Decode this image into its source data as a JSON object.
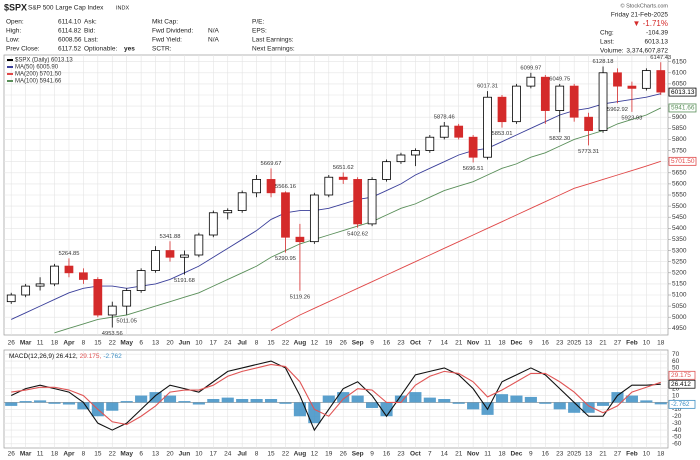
{
  "header": {
    "symbol": "$SPX",
    "name": "S&P 500 Large Cap Index",
    "exchange": "INDX",
    "columns": [
      [
        {
          "label": "Open:",
          "value": "6114.10"
        },
        {
          "label": "High:",
          "value": "6114.82"
        },
        {
          "label": "Low:",
          "value": "6008.56"
        },
        {
          "label": "Prev Close:",
          "value": "6117.52"
        }
      ],
      [
        {
          "label": "Ask:"
        },
        {
          "label": "Bid:"
        },
        {
          "label": "Last:"
        },
        {
          "label": "Optionable:",
          "value": "yes"
        }
      ],
      [
        {
          "label": "Mkt Cap:"
        },
        {
          "label": "Fwd Dividend:",
          "value": "N/A"
        },
        {
          "label": "Fwd Yield:",
          "value": "N/A"
        },
        {
          "label": "SCTR:"
        }
      ],
      [
        {
          "label": "P/E:"
        },
        {
          "label": "EPS:"
        },
        {
          "label": "Last Earnings:"
        },
        {
          "label": "Next Earnings:"
        }
      ]
    ],
    "date": "Friday 21-Feb-2025",
    "change_pct": "▼ -1.71%",
    "stats": [
      {
        "label": "Chg:",
        "value": "-104.39"
      },
      {
        "label": "Last:",
        "value": "6013.13"
      },
      {
        "label": "Volume:",
        "value": "3,374,607,872"
      }
    ],
    "copyright": "© StockCharts.com"
  },
  "chart_data": {
    "type": "candlestick",
    "categories": [
      "26",
      "Mar",
      "11",
      "18",
      "Apr",
      "8",
      "15",
      "22",
      "May",
      "6",
      "13",
      "20",
      "Jun",
      "10",
      "17",
      "24",
      "Jul",
      "8",
      "15",
      "22",
      "Aug",
      "12",
      "19",
      "26",
      "Sep",
      "9",
      "16",
      "23",
      "Oct",
      "7",
      "14",
      "21",
      "Nov",
      "11",
      "18",
      "Dec",
      "9",
      "16",
      "23",
      "2025",
      "13",
      "21",
      "27",
      "Feb",
      "10",
      "18"
    ],
    "candles": {
      "name": "$SPX (Daily) 6013.13",
      "up_color": "#000000",
      "down_color": "#d42a2a",
      "open": [
        5070,
        5100,
        5140,
        5150,
        5230,
        5200,
        5170,
        5010,
        5050,
        5120,
        5210,
        5300,
        5270,
        5280,
        5370,
        5470,
        5480,
        5560,
        5620,
        5560,
        5360,
        5340,
        5550,
        5630,
        5620,
        5420,
        5620,
        5700,
        5730,
        5750,
        5810,
        5860,
        5810,
        5720,
        5990,
        5880,
        6040,
        6080,
        5930,
        6040,
        5900,
        5840,
        6100,
        6040,
        6030,
        6110
      ],
      "high": [
        5110,
        5150,
        5180,
        5240,
        5264.85,
        5220,
        5180,
        5070,
        5130,
        5220,
        5320,
        5341.88,
        5300,
        5380,
        5480,
        5490,
        5570,
        5640,
        5669.67,
        5566.16,
        5420,
        5560,
        5640,
        5651.62,
        5630,
        5630,
        5710,
        5740,
        5760,
        5820,
        5878.46,
        5870,
        5820,
        6017.31,
        6000,
        6050,
        6099.97,
        6090,
        6049.75,
        6050,
        5920,
        6128.18,
        6120,
        6060,
        6120,
        6147.43
      ],
      "low": [
        5060,
        5090,
        5120,
        5140,
        5180,
        5150,
        5000,
        4953.56,
        5011.05,
        5110,
        5200,
        5250,
        5191.68,
        5270,
        5360,
        5440,
        5470,
        5540,
        5540,
        5290.95,
        5119.26,
        5330,
        5540,
        5600,
        5402.62,
        5410,
        5610,
        5690,
        5680,
        5740,
        5800,
        5800,
        5696.51,
        5710,
        5853.01,
        5870,
        6030,
        5870,
        5832.3,
        5880,
        5773.31,
        5830,
        5962.92,
        5923.93,
        6020,
        6000
      ],
      "close": [
        5100,
        5140,
        5150,
        5230,
        5200,
        5170,
        5010,
        5050,
        5120,
        5210,
        5300,
        5270,
        5280,
        5370,
        5470,
        5480,
        5560,
        5620,
        5560,
        5360,
        5340,
        5550,
        5630,
        5620,
        5420,
        5620,
        5700,
        5730,
        5750,
        5810,
        5860,
        5810,
        5720,
        5990,
        5880,
        6040,
        6080,
        5930,
        6040,
        5900,
        5840,
        6100,
        6040,
        6030,
        6110,
        6013.13
      ]
    },
    "high_labels": [
      null,
      null,
      null,
      null,
      "5264.85",
      null,
      null,
      null,
      null,
      null,
      null,
      "5341.88",
      null,
      null,
      null,
      null,
      null,
      null,
      "5669.67",
      "5566.16",
      null,
      null,
      null,
      "5651.62",
      null,
      null,
      null,
      null,
      null,
      null,
      "5878.46",
      null,
      null,
      "6017.31",
      null,
      null,
      "6099.97",
      null,
      "6049.75",
      null,
      null,
      "6128.18",
      null,
      null,
      null,
      "6147.43"
    ],
    "low_labels": [
      null,
      null,
      null,
      null,
      null,
      null,
      null,
      "4953.56",
      "5011.05",
      null,
      null,
      null,
      "5191.68",
      null,
      null,
      null,
      null,
      null,
      null,
      "5290.95",
      "5119.26",
      null,
      null,
      null,
      "5402.62",
      null,
      null,
      null,
      null,
      null,
      null,
      null,
      "5696.51",
      null,
      "5853.01",
      null,
      null,
      null,
      "5832.30",
      null,
      "5773.31",
      null,
      "5962.92",
      "5923.93",
      null,
      null
    ],
    "series": [
      {
        "name": "MA(50) 6005.90",
        "color": "#3a3f9a",
        "values": [
          4990,
          5020,
          5050,
          5080,
          5110,
          5130,
          5140,
          5140,
          5130,
          5140,
          5150,
          5170,
          5200,
          5230,
          5270,
          5310,
          5350,
          5390,
          5440,
          5470,
          5480,
          5480,
          5490,
          5510,
          5530,
          5540,
          5570,
          5600,
          5640,
          5670,
          5700,
          5730,
          5750,
          5760,
          5790,
          5820,
          5850,
          5880,
          5910,
          5930,
          5940,
          5960,
          5970,
          5980,
          5990,
          6005.9
        ]
      },
      {
        "name": "MA(200) 5701.50",
        "color": "#e04848",
        "values": [
          null,
          null,
          null,
          null,
          null,
          null,
          null,
          null,
          null,
          null,
          null,
          null,
          null,
          null,
          null,
          null,
          null,
          null,
          4940,
          4975,
          5010,
          5040,
          5070,
          5100,
          5130,
          5160,
          5190,
          5220,
          5250,
          5280,
          5310,
          5340,
          5370,
          5400,
          5430,
          5460,
          5490,
          5520,
          5550,
          5580,
          5600,
          5620,
          5640,
          5660,
          5680,
          5701.5
        ],
        "value_labels": [
          null,
          null,
          null,
          null,
          null,
          null,
          null,
          null,
          null,
          null,
          null,
          null,
          null,
          null,
          null,
          null,
          null,
          null,
          null,
          null,
          null,
          null,
          null,
          null,
          null,
          null,
          null,
          null,
          null,
          null,
          null,
          null,
          null,
          null,
          null,
          null,
          null,
          null,
          null,
          null,
          null,
          null,
          null,
          null,
          null,
          "5701.50"
        ]
      },
      {
        "name": "MA(100) 5941.66",
        "color": "#5a8f5a",
        "values": [
          null,
          null,
          null,
          4930,
          4950,
          4970,
          4990,
          5000,
          5010,
          5030,
          5050,
          5070,
          5090,
          5110,
          5140,
          5170,
          5200,
          5230,
          5270,
          5300,
          5330,
          5350,
          5370,
          5390,
          5410,
          5430,
          5460,
          5490,
          5510,
          5540,
          5570,
          5590,
          5610,
          5640,
          5670,
          5690,
          5720,
          5740,
          5770,
          5800,
          5820,
          5840,
          5870,
          5890,
          5910,
          5941.66
        ]
      }
    ],
    "ylim": [
      4920,
      6180
    ],
    "yticks": [
      4950,
      5000,
      5050,
      5100,
      5150,
      5200,
      5250,
      5300,
      5350,
      5400,
      5450,
      5500,
      5550,
      5600,
      5650,
      5700,
      5750,
      5800,
      5850,
      5900,
      5950,
      6000,
      6050,
      6100,
      6150
    ],
    "grid": true,
    "macd": {
      "series": [
        {
          "name": "MACD(12,26,9) 26.412,",
          "color": "#111111",
          "values": [
            10,
            20,
            25,
            20,
            15,
            0,
            -30,
            -40,
            -30,
            -10,
            10,
            25,
            20,
            15,
            30,
            45,
            50,
            55,
            60,
            50,
            10,
            -40,
            -10,
            20,
            30,
            10,
            -20,
            10,
            40,
            45,
            50,
            40,
            20,
            -10,
            30,
            40,
            50,
            40,
            20,
            0,
            -20,
            -20,
            10,
            25,
            25,
            26.412
          ]
        },
        {
          "name": "29.175,",
          "color": "#e05555",
          "values": [
            15,
            18,
            22,
            22,
            18,
            10,
            -10,
            -28,
            -32,
            -20,
            -5,
            15,
            18,
            18,
            25,
            38,
            45,
            50,
            55,
            52,
            30,
            -10,
            -20,
            5,
            20,
            18,
            0,
            0,
            25,
            38,
            45,
            42,
            30,
            8,
            18,
            30,
            42,
            42,
            30,
            15,
            -5,
            -15,
            -5,
            15,
            22,
            29.175
          ]
        }
      ],
      "histogram": {
        "name": "-2.762",
        "color": "#3d8fc4",
        "values": [
          -5,
          2,
          3,
          -2,
          -3,
          -10,
          -20,
          -12,
          2,
          10,
          15,
          10,
          2,
          -3,
          5,
          7,
          5,
          5,
          5,
          -2,
          -20,
          -30,
          10,
          15,
          10,
          -8,
          -20,
          10,
          15,
          7,
          5,
          -2,
          -10,
          -18,
          12,
          10,
          8,
          -2,
          -10,
          -15,
          -15,
          -5,
          15,
          10,
          3,
          -2.762
        ]
      },
      "ylim": [
        -66,
        76
      ],
      "yticks": [
        -60,
        -50,
        -40,
        -30,
        -20,
        -10,
        0,
        10,
        20,
        30,
        40,
        50,
        60,
        70
      ]
    }
  }
}
